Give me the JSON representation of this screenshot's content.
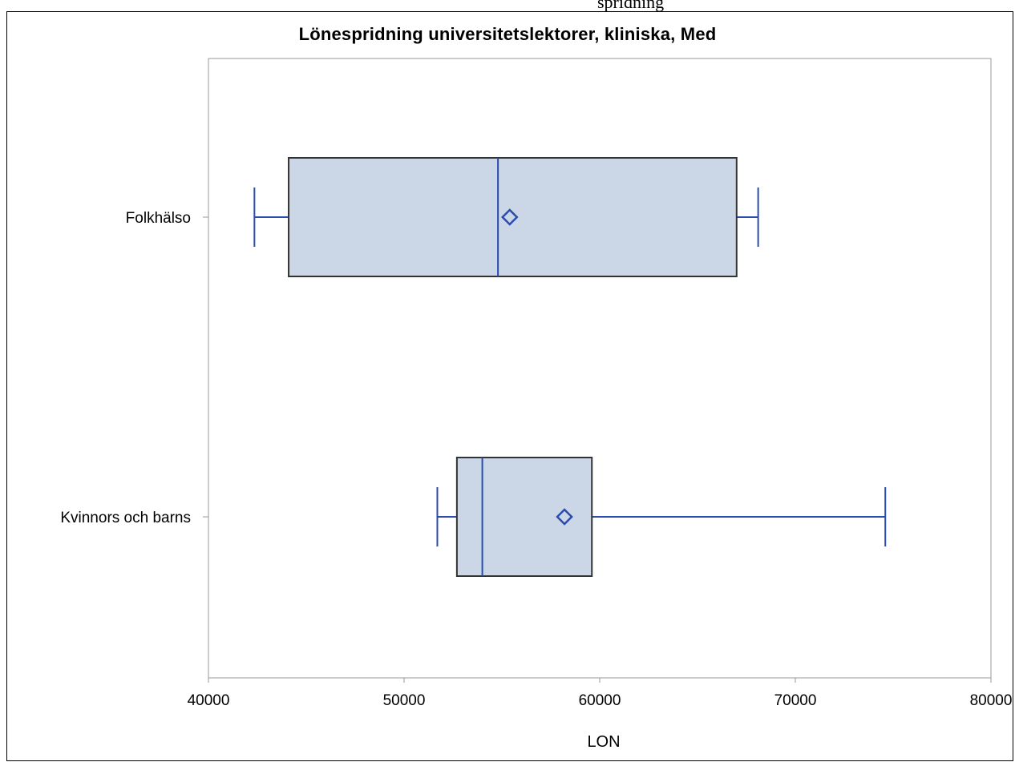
{
  "page": {
    "top_text": "spridning"
  },
  "chart_data": {
    "type": "box",
    "title": "Lönespridning universitetslektorer, kliniska, Med",
    "xlabel": "LON",
    "ylabel": "",
    "xlim": [
      40000,
      80000
    ],
    "x_ticks": [
      40000,
      50000,
      60000,
      70000,
      80000
    ],
    "grid": false,
    "categories": [
      "Folkhälso",
      "Kvinnors och barns"
    ],
    "boxes": [
      {
        "category": "Folkhälso",
        "min": 42350,
        "q1": 44100,
        "median": 54800,
        "mean": 55400,
        "q3": 67000,
        "max": 68100
      },
      {
        "category": "Kvinnors och barns",
        "min": 51700,
        "q1": 52700,
        "median": 54000,
        "mean": 58200,
        "q3": 59600,
        "max": 74600
      }
    ],
    "colors": {
      "box_fill": "#cbd6e6",
      "box_edge": "#333333",
      "whisker": "#2a4bb0",
      "mean_marker": "#2a4bb0",
      "axis": "#999999"
    }
  }
}
